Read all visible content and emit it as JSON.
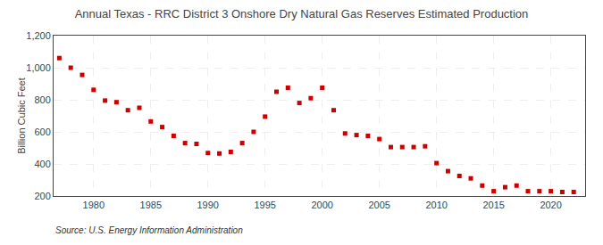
{
  "chart_data": {
    "type": "scatter",
    "title": "Annual Texas - RRC District 3 Onshore Dry Natural Gas Reserves Estimated Production",
    "ylabel": "Billion Cubic Feet",
    "source": "Source: U.S. Energy Information Administration",
    "marker": "square",
    "color": "#cc0000",
    "grid": true,
    "x": [
      1977,
      1978,
      1979,
      1980,
      1981,
      1982,
      1983,
      1984,
      1985,
      1986,
      1987,
      1988,
      1989,
      1990,
      1991,
      1992,
      1993,
      1994,
      1995,
      1996,
      1997,
      1998,
      1999,
      2000,
      2001,
      2002,
      2003,
      2004,
      2005,
      2006,
      2007,
      2008,
      2009,
      2010,
      2011,
      2012,
      2013,
      2014,
      2015,
      2016,
      2017,
      2018,
      2019,
      2020,
      2021,
      2022
    ],
    "values": [
      1060,
      1000,
      955,
      862,
      795,
      785,
      735,
      750,
      665,
      630,
      575,
      530,
      525,
      468,
      465,
      475,
      530,
      600,
      695,
      850,
      875,
      780,
      810,
      875,
      735,
      590,
      580,
      575,
      555,
      505,
      505,
      505,
      510,
      405,
      355,
      325,
      310,
      265,
      230,
      255,
      265,
      230,
      230,
      230,
      225,
      225
    ],
    "xlim": [
      1976.5,
      2023
    ],
    "xticks": [
      1980,
      1985,
      1990,
      1995,
      2000,
      2005,
      2010,
      2015,
      2020
    ],
    "ylim": [
      200,
      1200
    ],
    "yticks": [
      200,
      400,
      600,
      800,
      {
        "value": 1000,
        "label": "1,000"
      },
      {
        "value": 1200,
        "label": "1,200"
      }
    ]
  }
}
